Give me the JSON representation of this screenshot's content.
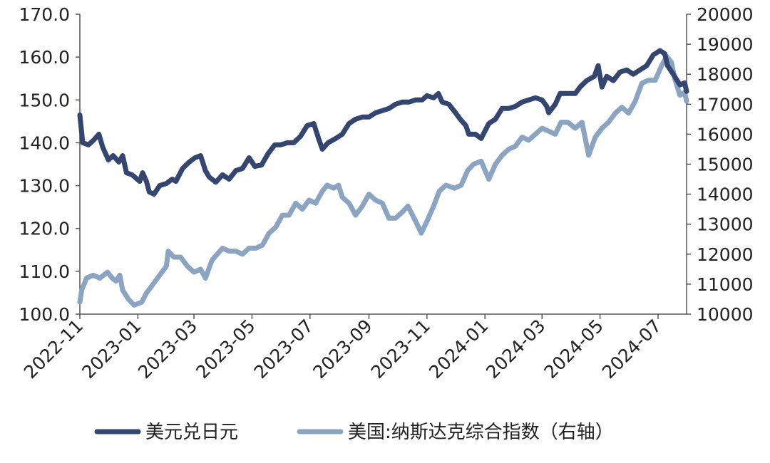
{
  "chart_data": {
    "type": "line",
    "title": "",
    "xlabel": "",
    "ylabel": "",
    "grid": false,
    "legend_position": "bottom",
    "x_ticks": [
      "2022-11",
      "2023-01",
      "2023-03",
      "2023-05",
      "2023-07",
      "2023-09",
      "2023-11",
      "2024-01",
      "2024-03",
      "2024-05",
      "2024-07"
    ],
    "x_range": [
      "2022-11-01",
      "2024-07-31"
    ],
    "y_left": {
      "ylim": [
        100,
        170
      ],
      "ticks": [
        "100.0",
        "110.0",
        "120.0",
        "130.0",
        "140.0",
        "150.0",
        "160.0",
        "170.0"
      ]
    },
    "y_right": {
      "ylim": [
        10000,
        20000
      ],
      "ticks": [
        "10000",
        "11000",
        "12000",
        "13000",
        "14000",
        "15000",
        "16000",
        "17000",
        "18000",
        "19000",
        "20000"
      ]
    },
    "series": [
      {
        "name": "美元兑日元",
        "axis": "left",
        "color": "#34466f",
        "points": [
          [
            "2022-11-01",
            146.5
          ],
          [
            "2022-11-04",
            140.0
          ],
          [
            "2022-11-10",
            139.5
          ],
          [
            "2022-11-15",
            140.5
          ],
          [
            "2022-11-21",
            142.0
          ],
          [
            "2022-11-25",
            139.0
          ],
          [
            "2022-12-01",
            136.0
          ],
          [
            "2022-12-06",
            137.0
          ],
          [
            "2022-12-12",
            135.5
          ],
          [
            "2022-12-16",
            137.0
          ],
          [
            "2022-12-20",
            133.0
          ],
          [
            "2022-12-26",
            132.5
          ],
          [
            "2023-01-03",
            131.0
          ],
          [
            "2023-01-06",
            133.0
          ],
          [
            "2023-01-10",
            131.0
          ],
          [
            "2023-01-13",
            128.5
          ],
          [
            "2023-01-18",
            128.0
          ],
          [
            "2023-01-24",
            130.0
          ],
          [
            "2023-01-31",
            130.5
          ],
          [
            "2023-02-06",
            131.5
          ],
          [
            "2023-02-10",
            131.0
          ],
          [
            "2023-02-17",
            134.0
          ],
          [
            "2023-02-24",
            135.5
          ],
          [
            "2023-03-02",
            136.5
          ],
          [
            "2023-03-08",
            137.0
          ],
          [
            "2023-03-13",
            133.5
          ],
          [
            "2023-03-17",
            132.0
          ],
          [
            "2023-03-24",
            130.8
          ],
          [
            "2023-03-31",
            132.5
          ],
          [
            "2023-04-07",
            131.5
          ],
          [
            "2023-04-14",
            133.5
          ],
          [
            "2023-04-21",
            134.0
          ],
          [
            "2023-04-28",
            136.5
          ],
          [
            "2023-05-04",
            134.5
          ],
          [
            "2023-05-11",
            134.8
          ],
          [
            "2023-05-18",
            137.5
          ],
          [
            "2023-05-25",
            139.5
          ],
          [
            "2023-05-31",
            139.5
          ],
          [
            "2023-06-07",
            140.0
          ],
          [
            "2023-06-14",
            140.0
          ],
          [
            "2023-06-21",
            141.5
          ],
          [
            "2023-06-28",
            144.0
          ],
          [
            "2023-07-05",
            144.5
          ],
          [
            "2023-07-10",
            141.0
          ],
          [
            "2023-07-14",
            138.5
          ],
          [
            "2023-07-20",
            140.0
          ],
          [
            "2023-07-28",
            141.0
          ],
          [
            "2023-08-04",
            142.0
          ],
          [
            "2023-08-11",
            144.5
          ],
          [
            "2023-08-18",
            145.5
          ],
          [
            "2023-08-25",
            146.0
          ],
          [
            "2023-09-01",
            146.0
          ],
          [
            "2023-09-08",
            147.0
          ],
          [
            "2023-09-15",
            147.5
          ],
          [
            "2023-09-22",
            148.0
          ],
          [
            "2023-09-29",
            149.0
          ],
          [
            "2023-10-06",
            149.5
          ],
          [
            "2023-10-13",
            149.5
          ],
          [
            "2023-10-20",
            150.0
          ],
          [
            "2023-10-27",
            150.0
          ],
          [
            "2023-11-01",
            151.0
          ],
          [
            "2023-11-08",
            150.5
          ],
          [
            "2023-11-13",
            151.5
          ],
          [
            "2023-11-17",
            149.5
          ],
          [
            "2023-11-24",
            149.0
          ],
          [
            "2023-12-01",
            147.0
          ],
          [
            "2023-12-06",
            145.5
          ],
          [
            "2023-12-12",
            144.0
          ],
          [
            "2023-12-15",
            142.0
          ],
          [
            "2023-12-22",
            142.0
          ],
          [
            "2023-12-28",
            141.0
          ],
          [
            "2024-01-05",
            144.5
          ],
          [
            "2024-01-12",
            145.5
          ],
          [
            "2024-01-19",
            148.0
          ],
          [
            "2024-01-26",
            148.0
          ],
          [
            "2024-02-02",
            148.5
          ],
          [
            "2024-02-09",
            149.5
          ],
          [
            "2024-02-16",
            150.0
          ],
          [
            "2024-02-23",
            150.5
          ],
          [
            "2024-03-01",
            150.0
          ],
          [
            "2024-03-06",
            148.5
          ],
          [
            "2024-03-08",
            147.0
          ],
          [
            "2024-03-15",
            149.0
          ],
          [
            "2024-03-20",
            151.5
          ],
          [
            "2024-03-29",
            151.5
          ],
          [
            "2024-04-05",
            151.5
          ],
          [
            "2024-04-10",
            153.0
          ],
          [
            "2024-04-17",
            154.5
          ],
          [
            "2024-04-25",
            155.5
          ],
          [
            "2024-04-29",
            158.0
          ],
          [
            "2024-05-03",
            153.0
          ],
          [
            "2024-05-08",
            155.5
          ],
          [
            "2024-05-15",
            154.5
          ],
          [
            "2024-05-22",
            156.5
          ],
          [
            "2024-05-29",
            157.0
          ],
          [
            "2024-06-05",
            156.0
          ],
          [
            "2024-06-12",
            157.0
          ],
          [
            "2024-06-19",
            158.0
          ],
          [
            "2024-06-26",
            160.5
          ],
          [
            "2024-07-03",
            161.5
          ],
          [
            "2024-07-08",
            160.8
          ],
          [
            "2024-07-11",
            158.0
          ],
          [
            "2024-07-17",
            156.0
          ],
          [
            "2024-07-24",
            153.5
          ],
          [
            "2024-07-29",
            154.0
          ],
          [
            "2024-07-31",
            152.0
          ]
        ]
      },
      {
        "name": "美国:纳斯达克综合指数（右轴）",
        "axis": "right",
        "color": "#8aa4c2",
        "points": [
          [
            "2022-11-01",
            10400
          ],
          [
            "2022-11-03",
            10800
          ],
          [
            "2022-11-08",
            11200
          ],
          [
            "2022-11-15",
            11300
          ],
          [
            "2022-11-22",
            11200
          ],
          [
            "2022-11-30",
            11400
          ],
          [
            "2022-12-05",
            11200
          ],
          [
            "2022-12-09",
            11100
          ],
          [
            "2022-12-13",
            11300
          ],
          [
            "2022-12-16",
            10800
          ],
          [
            "2022-12-22",
            10500
          ],
          [
            "2022-12-28",
            10300
          ],
          [
            "2023-01-05",
            10400
          ],
          [
            "2023-01-10",
            10700
          ],
          [
            "2023-01-17",
            11000
          ],
          [
            "2023-01-24",
            11300
          ],
          [
            "2023-01-31",
            11600
          ],
          [
            "2023-02-02",
            12100
          ],
          [
            "2023-02-08",
            11900
          ],
          [
            "2023-02-15",
            11900
          ],
          [
            "2023-02-22",
            11600
          ],
          [
            "2023-03-01",
            11400
          ],
          [
            "2023-03-08",
            11500
          ],
          [
            "2023-03-13",
            11200
          ],
          [
            "2023-03-20",
            11800
          ],
          [
            "2023-03-31",
            12200
          ],
          [
            "2023-04-07",
            12100
          ],
          [
            "2023-04-14",
            12100
          ],
          [
            "2023-04-21",
            12000
          ],
          [
            "2023-04-28",
            12200
          ],
          [
            "2023-05-05",
            12200
          ],
          [
            "2023-05-12",
            12300
          ],
          [
            "2023-05-19",
            12700
          ],
          [
            "2023-05-26",
            12900
          ],
          [
            "2023-06-02",
            13300
          ],
          [
            "2023-06-09",
            13300
          ],
          [
            "2023-06-16",
            13700
          ],
          [
            "2023-06-23",
            13500
          ],
          [
            "2023-06-30",
            13800
          ],
          [
            "2023-07-07",
            13700
          ],
          [
            "2023-07-14",
            14100
          ],
          [
            "2023-07-19",
            14300
          ],
          [
            "2023-07-26",
            14200
          ],
          [
            "2023-07-31",
            14300
          ],
          [
            "2023-08-04",
            13900
          ],
          [
            "2023-08-11",
            13700
          ],
          [
            "2023-08-18",
            13300
          ],
          [
            "2023-08-25",
            13600
          ],
          [
            "2023-09-01",
            14000
          ],
          [
            "2023-09-08",
            13800
          ],
          [
            "2023-09-15",
            13700
          ],
          [
            "2023-09-22",
            13200
          ],
          [
            "2023-09-29",
            13200
          ],
          [
            "2023-10-06",
            13400
          ],
          [
            "2023-10-12",
            13600
          ],
          [
            "2023-10-20",
            13100
          ],
          [
            "2023-10-26",
            12700
          ],
          [
            "2023-11-01",
            13100
          ],
          [
            "2023-11-08",
            13600
          ],
          [
            "2023-11-14",
            14100
          ],
          [
            "2023-11-21",
            14300
          ],
          [
            "2023-11-30",
            14200
          ],
          [
            "2023-12-07",
            14300
          ],
          [
            "2023-12-14",
            14800
          ],
          [
            "2023-12-20",
            15000
          ],
          [
            "2023-12-28",
            15100
          ],
          [
            "2024-01-05",
            14500
          ],
          [
            "2024-01-12",
            15000
          ],
          [
            "2024-01-19",
            15300
          ],
          [
            "2024-01-26",
            15500
          ],
          [
            "2024-02-02",
            15600
          ],
          [
            "2024-02-09",
            15900
          ],
          [
            "2024-02-16",
            15800
          ],
          [
            "2024-02-23",
            16000
          ],
          [
            "2024-03-01",
            16200
          ],
          [
            "2024-03-08",
            16100
          ],
          [
            "2024-03-15",
            16000
          ],
          [
            "2024-03-21",
            16400
          ],
          [
            "2024-03-28",
            16400
          ],
          [
            "2024-04-05",
            16200
          ],
          [
            "2024-04-12",
            16400
          ],
          [
            "2024-04-19",
            15300
          ],
          [
            "2024-04-26",
            15900
          ],
          [
            "2024-05-03",
            16200
          ],
          [
            "2024-05-10",
            16400
          ],
          [
            "2024-05-17",
            16700
          ],
          [
            "2024-05-24",
            16900
          ],
          [
            "2024-05-31",
            16700
          ],
          [
            "2024-06-07",
            17100
          ],
          [
            "2024-06-14",
            17700
          ],
          [
            "2024-06-21",
            17800
          ],
          [
            "2024-06-28",
            17800
          ],
          [
            "2024-07-05",
            18300
          ],
          [
            "2024-07-10",
            18600
          ],
          [
            "2024-07-15",
            18400
          ],
          [
            "2024-07-19",
            17800
          ],
          [
            "2024-07-24",
            17300
          ],
          [
            "2024-07-29",
            17400
          ],
          [
            "2024-07-31",
            17100
          ]
        ]
      }
    ]
  }
}
